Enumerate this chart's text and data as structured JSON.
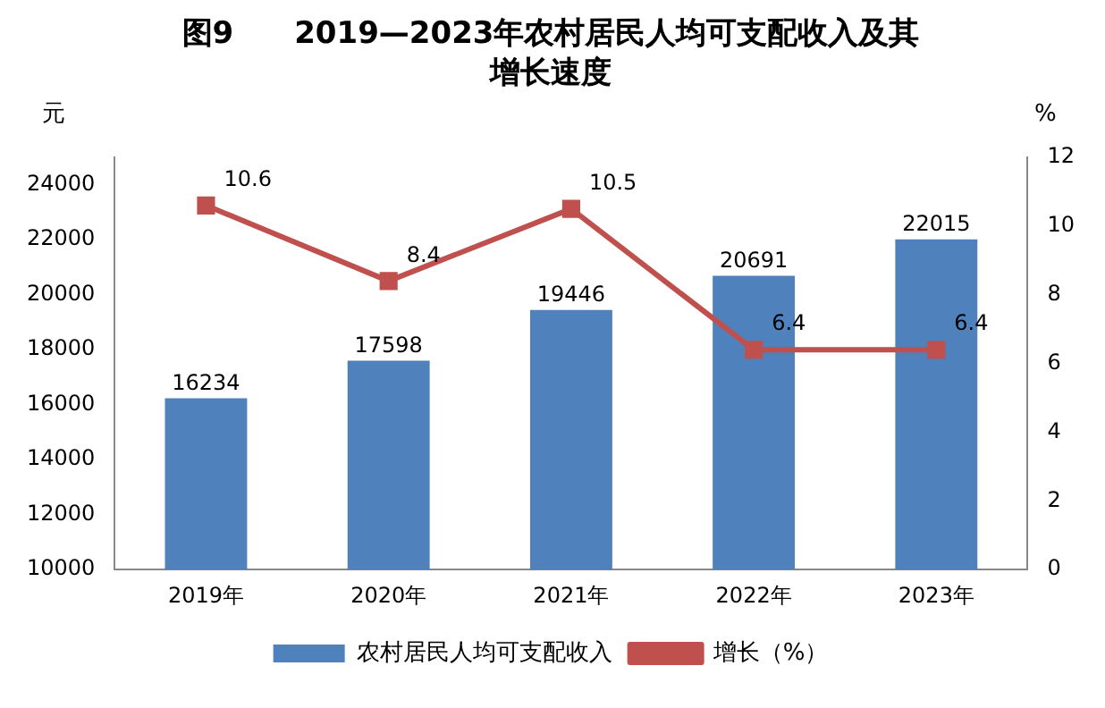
{
  "chart_data": {
    "type": "bar",
    "title": "图9　　2019—2023年农村居民人均可支配收入及其增长速度",
    "categories": [
      "2019年",
      "2020年",
      "2021年",
      "2022年",
      "2023年"
    ],
    "series": [
      {
        "name": "农村居民人均可支配收入",
        "color": "#4f81bd",
        "values": [
          16234,
          17598,
          19446,
          20691,
          22015
        ]
      },
      {
        "name": "增长（%）",
        "type": "line",
        "axis": "y2",
        "color": "#c0504d",
        "marker": "square",
        "values": [
          10.6,
          8.4,
          10.5,
          6.4,
          6.4
        ]
      }
    ],
    "ylabel": "元",
    "y2label": "%",
    "ylim": [
      10000,
      25000
    ],
    "yticks": [
      10000,
      12000,
      14000,
      16000,
      18000,
      20000,
      22000,
      24000
    ],
    "y2lim": [
      0,
      12
    ],
    "y2ticks": [
      0,
      2,
      4,
      6,
      8,
      10,
      12
    ],
    "grid": false,
    "legend": "bottom",
    "data_labels": true
  }
}
